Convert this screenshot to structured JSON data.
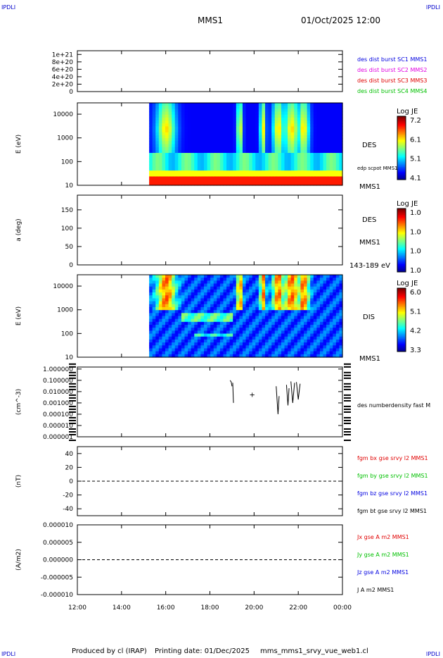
{
  "corners": {
    "tl": "IPDLI",
    "tr": "IPDLI",
    "bl": "IPDLI",
    "br": "IPDLI"
  },
  "header": {
    "mission": "MMS1",
    "datetime": "01/Oct/2025 12:00"
  },
  "footer": {
    "producer": "Produced by cl (IRAP)",
    "printing": "Printing date: 01/Dec/2025",
    "file": "mms_mms1_srvy_vue_web1.cl"
  },
  "time_axis": [
    "12:00",
    "14:00",
    "16:00",
    "18:00",
    "20:00",
    "22:00",
    "00:00"
  ],
  "colors": {
    "red": "#e00000",
    "green": "#00c000",
    "blue": "#0000e0",
    "magenta": "#e000e0"
  },
  "chart_data": [
    {
      "type": "line",
      "ylabel": "",
      "yticks": [
        "1e+21",
        "8e+20",
        "6e+20",
        "4e+20",
        "2e+20",
        "0"
      ],
      "ylim": [
        0,
        1.1e+21
      ],
      "reference_line": 0,
      "legend": [
        {
          "text": "des dist burst SC1 MMS1",
          "color": "#0000e0"
        },
        {
          "text": "des dist burst SC2 MMS2",
          "color": "#e000e0"
        },
        {
          "text": "des dist burst SC3 MMS3",
          "color": "#e00000"
        },
        {
          "text": "des dist burst SC4 MMS4",
          "color": "#00c000"
        }
      ]
    },
    {
      "type": "heatmap",
      "ylabel": "E (eV)",
      "yticks": [
        "10000",
        "1000",
        "100",
        "10"
      ],
      "yscale": "log",
      "ylim": [
        10,
        30000
      ],
      "data_start": "15:15",
      "right_labels": [
        "DES",
        "edp scpot MMS1",
        "MMS1"
      ],
      "colorbar": {
        "title": "Log JE",
        "ticks": [
          "7.2",
          "6.1",
          "5.1",
          "4.1"
        ]
      }
    },
    {
      "type": "heatmap",
      "ylabel": "a (deg)",
      "yticks": [
        "150",
        "100",
        "50",
        "0"
      ],
      "ylim": [
        0,
        190
      ],
      "right_labels": [
        "DES",
        "MMS1",
        "143-189 eV"
      ],
      "colorbar": {
        "title": "Log JE",
        "ticks": [
          "1.0",
          "1.0",
          "1.0",
          "1.0"
        ]
      }
    },
    {
      "type": "heatmap",
      "ylabel": "E (eV)",
      "yticks": [
        "10000",
        "1000",
        "100",
        "10"
      ],
      "yscale": "log",
      "ylim": [
        10,
        30000
      ],
      "data_start": "15:15",
      "right_labels": [
        "DIS",
        "MMS1"
      ],
      "colorbar": {
        "title": "Log JE",
        "ticks": [
          "6.0",
          "5.1",
          "4.2",
          "3.3"
        ]
      }
    },
    {
      "type": "line",
      "ylabel": "(cm^-3)",
      "yscale": "log",
      "yticks": [
        "1.000000",
        "0.100000",
        "0.010000",
        "0.001000",
        "0.000100",
        "0.000010",
        "0.000001"
      ],
      "ylim": [
        1e-06,
        1.5
      ],
      "right_labels": [
        "des numberdensity fast M"
      ],
      "series": [
        {
          "name": "des numberdensity fast M",
          "segments": [
            [
              [
                "18:55",
                0.1
              ],
              [
                "18:58",
                0.07
              ],
              [
                "19:00",
                0.03
              ]
            ],
            [
              [
                "19:02",
                0.06
              ],
              [
                "19:04",
                0.001
              ]
            ],
            [
              [
                "21:00",
                0.03
              ],
              [
                "21:05",
                0.0001
              ],
              [
                "21:08",
                0.004
              ]
            ],
            [
              [
                "21:28",
                0.04
              ],
              [
                "21:32",
                0.0006
              ],
              [
                "21:35",
                0.02
              ]
            ],
            [
              [
                "21:40",
                0.08
              ],
              [
                "21:45",
                0.001
              ],
              [
                "21:50",
                0.06
              ]
            ],
            [
              [
                "21:55",
                0.07
              ],
              [
                "22:00",
                0.002
              ],
              [
                "22:05",
                0.05
              ]
            ]
          ],
          "markers": [
            [
              "19:55",
              0.006
            ]
          ]
        }
      ]
    },
    {
      "type": "line",
      "ylabel": "(nT)",
      "yticks": [
        "40",
        "20",
        "0",
        "-20",
        "-40"
      ],
      "ylim": [
        -50,
        50
      ],
      "reference_line": 0,
      "legend": [
        {
          "text": "fgm bx gse srvy l2 MMS1",
          "color": "#e00000"
        },
        {
          "text": "fgm by gse srvy l2 MMS1",
          "color": "#00c000"
        },
        {
          "text": "fgm bz gse srvy l2 MMS1",
          "color": "#0000e0"
        },
        {
          "text": "fgm bt gse srvy l2 MMS1",
          "color": "#000000"
        }
      ]
    },
    {
      "type": "line",
      "ylabel": "(A/m2)",
      "yticks": [
        "0.000010",
        "0.000005",
        "0.000000",
        "-0.000005",
        "-0.000010"
      ],
      "ylim": [
        -1e-05,
        1e-05
      ],
      "reference_line": 0,
      "legend": [
        {
          "text": "Jx gse A m2 MMS1",
          "color": "#e00000"
        },
        {
          "text": "Jy gse A m2 MMS1",
          "color": "#00c000"
        },
        {
          "text": "Jz gse A m2 MMS1",
          "color": "#0000e0"
        },
        {
          "text": "J A m2 MMS1",
          "color": "#000000"
        }
      ]
    }
  ]
}
